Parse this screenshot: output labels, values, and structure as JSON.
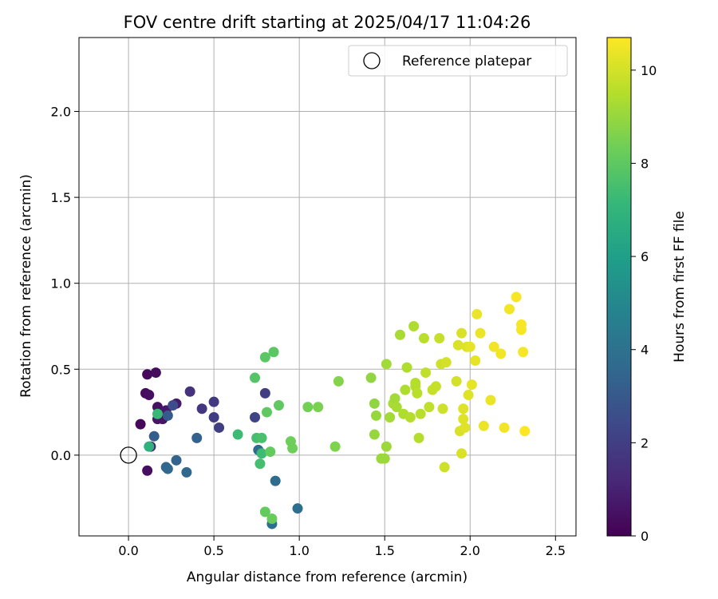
{
  "chart_data": {
    "type": "scatter",
    "title": "FOV centre drift starting at 2025/04/17 11:04:26",
    "xlabel": "Angular distance from reference (arcmin)",
    "ylabel": "Rotation from reference (arcmin)",
    "xlim": [
      -0.29,
      2.62
    ],
    "ylim": [
      -0.47,
      2.43
    ],
    "x_ticks": [
      0.0,
      0.5,
      1.0,
      1.5,
      2.0,
      2.5
    ],
    "x_tick_labels": [
      "0.0",
      "0.5",
      "1.0",
      "1.5",
      "2.0",
      "2.5"
    ],
    "y_ticks": [
      0.0,
      0.5,
      1.0,
      1.5,
      2.0
    ],
    "y_tick_labels": [
      "0.0",
      "0.5",
      "1.0",
      "1.5",
      "2.0"
    ],
    "grid": true,
    "legend": {
      "placement": "top-right",
      "entries": [
        "Reference platepar"
      ]
    },
    "reference_point": {
      "x": 0.0,
      "y": 0.0,
      "label": "Reference platepar"
    },
    "colorbar": {
      "label": "Hours from first FF file",
      "range": [
        0,
        10.7
      ],
      "ticks": [
        0,
        2,
        4,
        6,
        8,
        10
      ],
      "tick_labels": [
        "0",
        "2",
        "4",
        "6",
        "8",
        "10"
      ],
      "colormap": "viridis",
      "colormap_stops": [
        "#440154",
        "#482878",
        "#3e4989",
        "#31688e",
        "#26828e",
        "#1f9e89",
        "#35b779",
        "#6ece58",
        "#b5de2b",
        "#fde725"
      ]
    },
    "points": [
      {
        "x": 0.11,
        "y": 0.47,
        "hours": 0.2
      },
      {
        "x": 0.16,
        "y": 0.48,
        "hours": 0.3
      },
      {
        "x": 0.07,
        "y": 0.18,
        "hours": 0.2
      },
      {
        "x": 0.1,
        "y": 0.36,
        "hours": 0.3
      },
      {
        "x": 0.12,
        "y": 0.35,
        "hours": 0.4
      },
      {
        "x": 0.17,
        "y": 0.28,
        "hours": 0.5
      },
      {
        "x": 0.17,
        "y": 0.21,
        "hours": 0.6
      },
      {
        "x": 0.2,
        "y": 0.21,
        "hours": 0.6
      },
      {
        "x": 0.22,
        "y": 0.26,
        "hours": 0.7
      },
      {
        "x": 0.28,
        "y": 0.3,
        "hours": 0.8
      },
      {
        "x": 0.11,
        "y": -0.09,
        "hours": 0.4
      },
      {
        "x": 0.13,
        "y": 0.05,
        "hours": 0.9
      },
      {
        "x": 0.36,
        "y": 0.37,
        "hours": 1.5
      },
      {
        "x": 0.43,
        "y": 0.27,
        "hours": 1.7
      },
      {
        "x": 0.5,
        "y": 0.31,
        "hours": 1.8
      },
      {
        "x": 0.5,
        "y": 0.22,
        "hours": 1.9
      },
      {
        "x": 0.53,
        "y": 0.16,
        "hours": 2.0
      },
      {
        "x": 0.8,
        "y": 0.36,
        "hours": 1.9
      },
      {
        "x": 0.74,
        "y": 0.22,
        "hours": 2.2
      },
      {
        "x": 0.26,
        "y": 0.29,
        "hours": 2.5
      },
      {
        "x": 0.23,
        "y": 0.23,
        "hours": 3.0
      },
      {
        "x": 0.15,
        "y": 0.11,
        "hours": 3.2
      },
      {
        "x": 0.4,
        "y": 0.1,
        "hours": 3.3
      },
      {
        "x": 0.28,
        "y": -0.03,
        "hours": 3.4
      },
      {
        "x": 0.22,
        "y": -0.07,
        "hours": 3.5
      },
      {
        "x": 0.23,
        "y": -0.08,
        "hours": 3.6
      },
      {
        "x": 0.34,
        "y": -0.1,
        "hours": 3.6
      },
      {
        "x": 0.76,
        "y": 0.03,
        "hours": 3.7
      },
      {
        "x": 0.86,
        "y": -0.15,
        "hours": 3.8
      },
      {
        "x": 0.84,
        "y": -0.4,
        "hours": 3.9
      },
      {
        "x": 0.99,
        "y": -0.31,
        "hours": 3.9
      },
      {
        "x": 0.12,
        "y": 0.05,
        "hours": 6.8
      },
      {
        "x": 0.17,
        "y": 0.24,
        "hours": 7.2
      },
      {
        "x": 0.64,
        "y": 0.12,
        "hours": 7.3
      },
      {
        "x": 0.75,
        "y": 0.1,
        "hours": 7.5
      },
      {
        "x": 0.78,
        "y": 0.1,
        "hours": 7.6
      },
      {
        "x": 0.78,
        "y": 0.01,
        "hours": 7.3
      },
      {
        "x": 0.77,
        "y": -0.05,
        "hours": 7.5
      },
      {
        "x": 0.74,
        "y": 0.45,
        "hours": 7.8
      },
      {
        "x": 0.8,
        "y": 0.57,
        "hours": 7.9
      },
      {
        "x": 0.85,
        "y": 0.6,
        "hours": 7.9
      },
      {
        "x": 0.81,
        "y": 0.25,
        "hours": 8.0
      },
      {
        "x": 0.88,
        "y": 0.29,
        "hours": 8.0
      },
      {
        "x": 0.83,
        "y": 0.02,
        "hours": 8.1
      },
      {
        "x": 0.8,
        "y": -0.33,
        "hours": 8.1
      },
      {
        "x": 0.84,
        "y": -0.37,
        "hours": 8.2
      },
      {
        "x": 0.95,
        "y": 0.08,
        "hours": 8.3
      },
      {
        "x": 0.96,
        "y": 0.04,
        "hours": 8.3
      },
      {
        "x": 1.05,
        "y": 0.28,
        "hours": 8.4
      },
      {
        "x": 1.11,
        "y": 0.28,
        "hours": 8.5
      },
      {
        "x": 1.21,
        "y": 0.05,
        "hours": 8.6
      },
      {
        "x": 1.23,
        "y": 0.43,
        "hours": 8.7
      },
      {
        "x": 1.42,
        "y": 0.45,
        "hours": 8.9
      },
      {
        "x": 1.44,
        "y": 0.3,
        "hours": 8.9
      },
      {
        "x": 1.45,
        "y": 0.23,
        "hours": 9.0
      },
      {
        "x": 1.44,
        "y": 0.12,
        "hours": 9.0
      },
      {
        "x": 1.48,
        "y": -0.02,
        "hours": 9.1
      },
      {
        "x": 1.5,
        "y": -0.02,
        "hours": 9.1
      },
      {
        "x": 1.51,
        "y": 0.05,
        "hours": 9.1
      },
      {
        "x": 1.51,
        "y": 0.53,
        "hours": 9.2
      },
      {
        "x": 1.53,
        "y": 0.22,
        "hours": 9.2
      },
      {
        "x": 1.55,
        "y": 0.3,
        "hours": 9.3
      },
      {
        "x": 1.56,
        "y": 0.33,
        "hours": 9.2
      },
      {
        "x": 1.57,
        "y": 0.28,
        "hours": 9.3
      },
      {
        "x": 1.59,
        "y": 0.7,
        "hours": 9.3
      },
      {
        "x": 1.61,
        "y": 0.24,
        "hours": 9.4
      },
      {
        "x": 1.62,
        "y": 0.38,
        "hours": 9.4
      },
      {
        "x": 1.63,
        "y": 0.51,
        "hours": 9.4
      },
      {
        "x": 1.65,
        "y": 0.22,
        "hours": 9.5
      },
      {
        "x": 1.67,
        "y": 0.75,
        "hours": 9.4
      },
      {
        "x": 1.68,
        "y": 0.42,
        "hours": 9.5
      },
      {
        "x": 1.68,
        "y": 0.4,
        "hours": 9.5
      },
      {
        "x": 1.69,
        "y": 0.36,
        "hours": 9.6
      },
      {
        "x": 1.7,
        "y": 0.1,
        "hours": 9.5
      },
      {
        "x": 1.71,
        "y": 0.24,
        "hours": 9.6
      },
      {
        "x": 1.73,
        "y": 0.68,
        "hours": 9.6
      },
      {
        "x": 1.74,
        "y": 0.48,
        "hours": 9.7
      },
      {
        "x": 1.76,
        "y": 0.28,
        "hours": 9.7
      },
      {
        "x": 1.78,
        "y": 0.38,
        "hours": 9.8
      },
      {
        "x": 1.8,
        "y": 0.4,
        "hours": 9.8
      },
      {
        "x": 1.82,
        "y": 0.68,
        "hours": 9.8
      },
      {
        "x": 1.83,
        "y": 0.53,
        "hours": 9.9
      },
      {
        "x": 1.84,
        "y": 0.27,
        "hours": 9.9
      },
      {
        "x": 1.85,
        "y": -0.07,
        "hours": 9.9
      },
      {
        "x": 1.86,
        "y": 0.54,
        "hours": 10.0
      },
      {
        "x": 1.92,
        "y": 0.43,
        "hours": 10.0
      },
      {
        "x": 1.93,
        "y": 0.64,
        "hours": 10.1
      },
      {
        "x": 1.94,
        "y": 0.14,
        "hours": 10.1
      },
      {
        "x": 1.95,
        "y": 0.71,
        "hours": 10.1
      },
      {
        "x": 1.95,
        "y": 0.01,
        "hours": 10.1
      },
      {
        "x": 1.96,
        "y": 0.27,
        "hours": 10.2
      },
      {
        "x": 1.96,
        "y": 0.21,
        "hours": 10.2
      },
      {
        "x": 1.97,
        "y": 0.16,
        "hours": 10.2
      },
      {
        "x": 1.98,
        "y": 0.63,
        "hours": 10.2
      },
      {
        "x": 1.99,
        "y": 0.35,
        "hours": 10.2
      },
      {
        "x": 2.0,
        "y": 0.63,
        "hours": 10.3
      },
      {
        "x": 2.01,
        "y": 0.41,
        "hours": 10.3
      },
      {
        "x": 2.03,
        "y": 0.55,
        "hours": 10.3
      },
      {
        "x": 2.04,
        "y": 0.82,
        "hours": 10.4
      },
      {
        "x": 2.06,
        "y": 0.71,
        "hours": 10.4
      },
      {
        "x": 2.08,
        "y": 0.17,
        "hours": 10.4
      },
      {
        "x": 2.12,
        "y": 0.32,
        "hours": 10.4
      },
      {
        "x": 2.14,
        "y": 0.63,
        "hours": 10.5
      },
      {
        "x": 2.18,
        "y": 0.59,
        "hours": 10.5
      },
      {
        "x": 2.2,
        "y": 0.16,
        "hours": 10.5
      },
      {
        "x": 2.23,
        "y": 0.85,
        "hours": 10.5
      },
      {
        "x": 2.27,
        "y": 0.92,
        "hours": 10.6
      },
      {
        "x": 2.3,
        "y": 0.76,
        "hours": 10.6
      },
      {
        "x": 2.3,
        "y": 0.73,
        "hours": 10.6
      },
      {
        "x": 2.31,
        "y": 0.6,
        "hours": 10.6
      },
      {
        "x": 2.32,
        "y": 0.14,
        "hours": 10.7
      }
    ]
  }
}
